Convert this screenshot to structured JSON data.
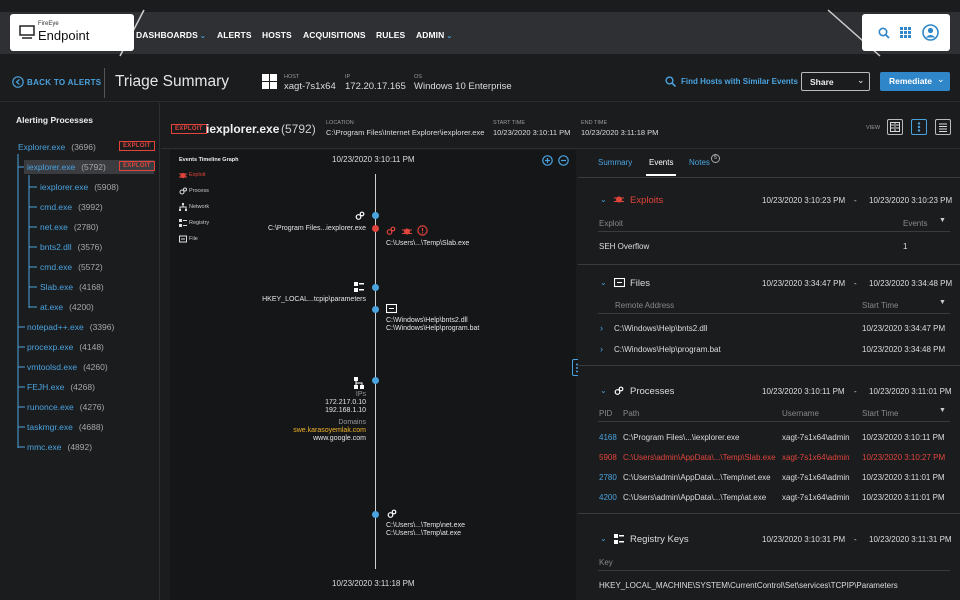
{
  "brand": {
    "small": "FireEye",
    "name": "Endpoint"
  },
  "nav": {
    "items": [
      "DASHBOARDS",
      "ALERTS",
      "HOSTS",
      "ACQUISITIONS",
      "RULES",
      "ADMIN"
    ]
  },
  "icons": {
    "search": "search-icon",
    "apps": "grid-icon",
    "user": "user-avatar-icon"
  },
  "header": {
    "back_label": "BACK TO ALERTS",
    "title": "Triage Summary",
    "host_label": "HOST",
    "host": "xagt-7s1x64",
    "ip_label": "IP",
    "ip": "172.20.17.165",
    "os_label": "OS",
    "os": "Windows 10 Enterprise",
    "find_hosts": "Find Hosts with Similar Events",
    "share": "Share",
    "remediate": "Remediate"
  },
  "left": {
    "title": "Alerting Processes",
    "exploit_label": "EXPLOIT",
    "items": [
      {
        "name": "Explorer.exe",
        "count": "(3696)",
        "exploit": true
      },
      {
        "name": "iexplorer.exe",
        "count": "(5792)",
        "exploit": true,
        "selected": true
      },
      {
        "name": "iexplorer.exe",
        "count": "(5908)"
      },
      {
        "name": "cmd.exe",
        "count": "(3992)"
      },
      {
        "name": "net.exe",
        "count": "(2780)"
      },
      {
        "name": "bnts2.dll",
        "count": "(3576)"
      },
      {
        "name": "cmd.exe",
        "count": "(5572)"
      },
      {
        "name": "Slab.exe",
        "count": "(4168)"
      },
      {
        "name": "at.exe",
        "count": "(4200)"
      },
      {
        "name": "notepad++.exe",
        "count": "(3396)"
      },
      {
        "name": "procexp.exe",
        "count": "(4148)"
      },
      {
        "name": "vmtoolsd.exe",
        "count": "(4260)"
      },
      {
        "name": "FEJH.exe",
        "count": "(4268)"
      },
      {
        "name": "runonce.exe",
        "count": "(4276)"
      },
      {
        "name": "taskmgr.exe",
        "count": "(4688)"
      },
      {
        "name": "mmc.exe",
        "count": "(4892)"
      }
    ]
  },
  "process": {
    "badge": "EXPLOIT",
    "name": "iexplorer.exe",
    "pid": "(5792)",
    "location_label": "LOCATION",
    "location": "C:\\Program Files\\Internet Explorer\\iexplorer.exe",
    "start_label": "START TIME",
    "start": "10/23/2020 3:10:11 PM",
    "end_label": "END TIME",
    "end": "10/23/2020 3:11:18 PM",
    "view_label": "VIEW"
  },
  "timeline": {
    "legend_title": "Events Timeline Graph",
    "legend": [
      "Exploit",
      "Process",
      "Network",
      "Registry",
      "File"
    ],
    "start": "10/23/2020  3:10:11 PM",
    "end": "10/23/2020  3:11:18 PM",
    "ev1_left": "C:\\Program Files...iexplorer.exe",
    "ev1_right": "C:\\Users\\...\\Temp\\Slab.exe",
    "ev2_left": "HKEY_LOCAL...tcpip\\parameters",
    "ev3_right1": "C:\\Windows\\Help\\bnts2.dll",
    "ev3_right2": "C:\\Windows\\Help\\program.bat",
    "ev4_ips_label": "IPs",
    "ev4_ip1": "172.217.0.10",
    "ev4_ip2": "192.168.1.10",
    "ev4_domains_label": "Domains",
    "ev4_dom1": "swe.karasoyemlak.com",
    "ev4_dom2": "www.google.com",
    "ev5_right1": "C:\\Users\\...\\Temp\\net.exe",
    "ev5_right2": "C:\\Users\\...\\Temp\\at.exe"
  },
  "tabs": {
    "summary": "Summary",
    "events": "Events",
    "notes": "Notes",
    "notes_count": "5"
  },
  "sections": {
    "exploits": {
      "title": "Exploits",
      "start": "10/23/2020 3:10:23 PM",
      "dash": "-",
      "end": "10/23/2020 3:10:23 PM",
      "col1": "Exploit",
      "col2": "Events",
      "row": {
        "name": "SEH Overflow",
        "events": "1"
      }
    },
    "files": {
      "title": "Files",
      "start": "10/23/2020 3:34:47 PM",
      "end": "10/23/2020 3:34:48 PM",
      "col1": "Remote Address",
      "col2": "Start Time",
      "rows": [
        {
          "path": "C:\\Windows\\Help\\bnts2.dll",
          "time": "10/23/2020 3:34:47 PM"
        },
        {
          "path": "C:\\Windows\\Help\\program.bat",
          "time": "10/23/2020 3:34:48 PM"
        }
      ]
    },
    "processes": {
      "title": "Processes",
      "start": "10/23/2020 3:10:11 PM",
      "end": "10/23/2020 3:11:01 PM",
      "col_pid": "PID",
      "col_path": "Path",
      "col_user": "Username",
      "col_start": "Start Time",
      "rows": [
        {
          "pid": "4168",
          "path": "C:\\Program Files\\...\\iexplorer.exe",
          "user": "xagt-7s1x64\\admin",
          "time": "10/23/2020 3:10:11 PM"
        },
        {
          "pid": "5908",
          "path": "C:\\Users\\admin\\AppData\\...\\Temp\\Slab.exe",
          "user": "xagt-7s1x64\\admin",
          "time": "10/23/2020 3:10:27 PM",
          "alert": true
        },
        {
          "pid": "2780",
          "path": "C:\\Users\\admin\\AppData\\...\\Temp\\net.exe",
          "user": "xagt-7s1x64\\admin",
          "time": "10/23/2020 3:11:01 PM"
        },
        {
          "pid": "4200",
          "path": "C:\\Users\\admin\\AppData\\...\\Temp\\at.exe",
          "user": "xagt-7s1x64\\admin",
          "time": "10/23/2020 3:11:01 PM"
        }
      ]
    },
    "registry": {
      "title": "Registry Keys",
      "start": "10/23/2020 3:10:31 PM",
      "end": "10/23/2020 3:11:31 PM",
      "col1": "Key",
      "row": "HKEY_LOCAL_MACHINE\\SYSTEM\\CurrentControl\\Set\\services\\TCPIP\\Parameters"
    }
  },
  "colors": {
    "accent": "#4aa3df",
    "alert": "#e0443b",
    "remediate": "#2f86c9"
  }
}
